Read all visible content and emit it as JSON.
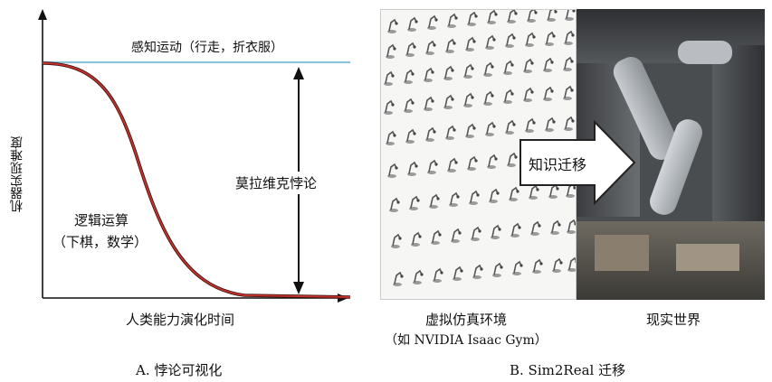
{
  "panel_a": {
    "caption": "A. 悖论可视化",
    "y_axis_label": "机器实现难度",
    "x_axis_label": "人类能力演化时间",
    "top_label": "感知运动（行走，折衣服）",
    "bottom_label_line1": "逻辑运算",
    "bottom_label_line2": "（下棋，数学）",
    "paradox_label": "莫拉维克悖论",
    "colors": {
      "top_line": "#8fc3dc",
      "curve": "#c0322b"
    }
  },
  "panel_b": {
    "caption": "B. Sim2Real 迁移",
    "sim_label_line1": "虚拟仿真环境",
    "sim_label_line2": "（如 NVIDIA Isaac Gym）",
    "real_label": "现实世界",
    "arrow_label": "知识迁移"
  }
}
